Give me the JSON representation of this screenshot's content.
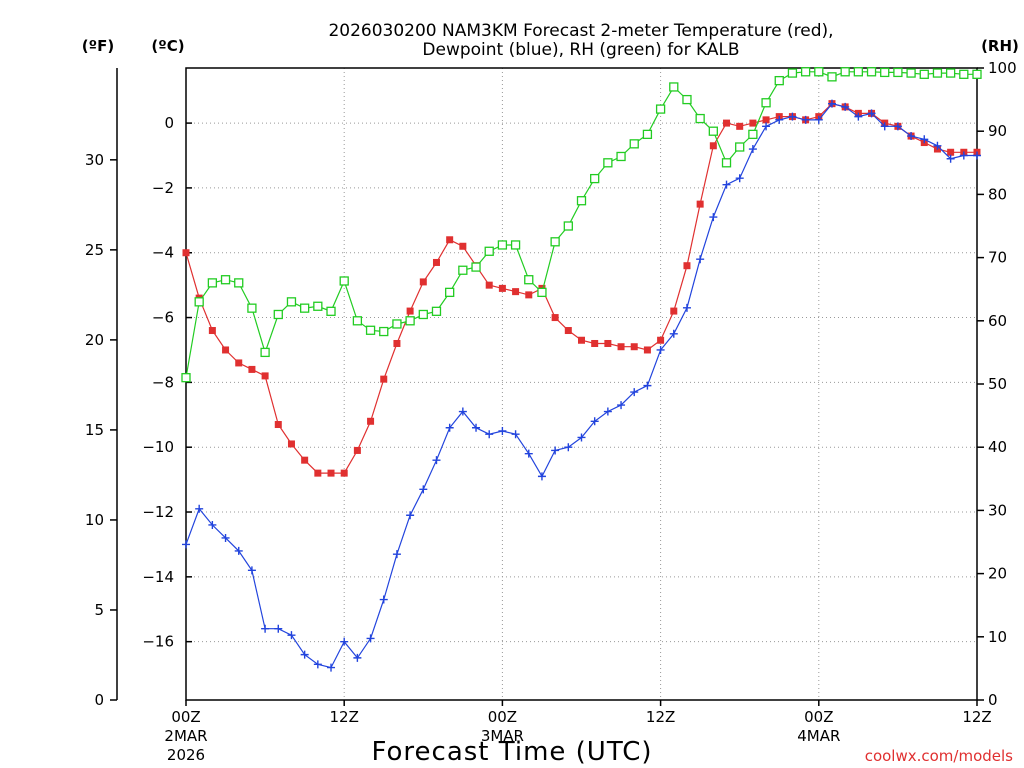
{
  "chart_data": {
    "type": "line",
    "title_line1": "2026030200 NAM3KM Forecast 2-meter Temperature (red),",
    "title_line2": "Dewpoint (blue), RH (green) for KALB",
    "xlabel": "Forecast Time (UTC)",
    "credit": "coolwx.com/models",
    "unit_labels": {
      "fahrenheit": "(ºF)",
      "celsius": "(ºC)",
      "rh": "(RH)"
    },
    "x_hours_range": [
      0,
      60
    ],
    "x_ticks": [
      {
        "hour": 0,
        "line1": "00Z",
        "line2": "2MAR",
        "line3": "2026"
      },
      {
        "hour": 12,
        "line1": "12Z",
        "line2": "",
        "line3": ""
      },
      {
        "hour": 24,
        "line1": "00Z",
        "line2": "3MAR",
        "line3": ""
      },
      {
        "hour": 36,
        "line1": "12Z",
        "line2": "",
        "line3": ""
      },
      {
        "hour": 48,
        "line1": "00Z",
        "line2": "4MAR",
        "line3": ""
      },
      {
        "hour": 60,
        "line1": "12Z",
        "line2": "",
        "line3": ""
      }
    ],
    "celsius_axis": {
      "range": [
        -17.8,
        1.7
      ],
      "ticks": [
        "−16",
        "−14",
        "−12",
        "−10",
        "−8",
        "−6",
        "−4",
        "−2",
        "0"
      ],
      "tick_values": [
        -16,
        -14,
        -12,
        -10,
        -8,
        -6,
        -4,
        -2,
        0
      ]
    },
    "fahrenheit_axis": {
      "range": [
        0,
        35.1
      ],
      "ticks": [
        "0",
        "5",
        "10",
        "15",
        "20",
        "25",
        "30"
      ],
      "tick_values": [
        0,
        5,
        10,
        15,
        20,
        25,
        30
      ]
    },
    "rh_axis": {
      "range": [
        0,
        100
      ],
      "ticks": [
        "0",
        "10",
        "20",
        "30",
        "40",
        "50",
        "60",
        "70",
        "80",
        "90",
        "100"
      ],
      "tick_values": [
        0,
        10,
        20,
        30,
        40,
        50,
        60,
        70,
        80,
        90,
        100
      ]
    },
    "series": [
      {
        "name": "2-meter Temperature",
        "unit": "C",
        "color": "#e03030",
        "marker": "filled-square",
        "values": [
          -4.0,
          -5.4,
          -6.4,
          -7.0,
          -7.4,
          -7.6,
          -7.8,
          -9.3,
          -9.9,
          -10.4,
          -10.8,
          -10.8,
          -10.8,
          -10.1,
          -9.2,
          -7.9,
          -6.8,
          -5.8,
          -4.9,
          -4.3,
          -3.6,
          -3.8,
          -4.4,
          -5.0,
          -5.1,
          -5.2,
          -5.3,
          -5.1,
          -6.0,
          -6.4,
          -6.7,
          -6.8,
          -6.8,
          -6.9,
          -6.9,
          -7.0,
          -6.7,
          -5.8,
          -4.4,
          -2.5,
          -0.7,
          0.0,
          -0.1,
          0.0,
          0.1,
          0.2,
          0.2,
          0.1,
          0.2,
          0.6,
          0.5,
          0.3,
          0.3,
          0.0,
          -0.1,
          -0.4,
          -0.6,
          -0.8,
          -0.9,
          -0.9,
          -0.9
        ]
      },
      {
        "name": "Dewpoint",
        "unit": "C",
        "color": "#2244dd",
        "marker": "plus",
        "values": [
          -13.0,
          -11.9,
          -12.4,
          -12.8,
          -13.2,
          -13.8,
          -15.6,
          -15.6,
          -15.8,
          -16.4,
          -16.7,
          -16.8,
          -16.0,
          -16.5,
          -15.9,
          -14.7,
          -13.3,
          -12.1,
          -11.3,
          -10.4,
          -9.4,
          -8.9,
          -9.4,
          -9.6,
          -9.5,
          -9.6,
          -10.2,
          -10.9,
          -10.1,
          -10.0,
          -9.7,
          -9.2,
          -8.9,
          -8.7,
          -8.3,
          -8.1,
          -7.0,
          -6.5,
          -5.7,
          -4.2,
          -2.9,
          -1.9,
          -1.7,
          -0.8,
          -0.1,
          0.1,
          0.2,
          0.1,
          0.1,
          0.6,
          0.5,
          0.2,
          0.3,
          -0.1,
          -0.1,
          -0.4,
          -0.5,
          -0.7,
          -1.1,
          -1.0,
          -1.0
        ]
      },
      {
        "name": "RH",
        "unit": "%",
        "color": "#22cc22",
        "marker": "open-square",
        "values": [
          51,
          63,
          66,
          66.5,
          66,
          62,
          55,
          61,
          63,
          62,
          62.3,
          61.5,
          66.3,
          60,
          58.5,
          58.3,
          59.5,
          60,
          61,
          61.5,
          64.5,
          68,
          68.5,
          71,
          72,
          72,
          66.5,
          64.5,
          72.5,
          75,
          79,
          82.5,
          85,
          86,
          88,
          89.5,
          93.5,
          97,
          95,
          92,
          90,
          85,
          87.5,
          89.5,
          94.5,
          98,
          99.2,
          99.4,
          99.4,
          98.6,
          99.4,
          99.4,
          99.4,
          99.3,
          99.3,
          99.2,
          99.0,
          99.2,
          99.2,
          99.0,
          99.0
        ]
      }
    ]
  }
}
